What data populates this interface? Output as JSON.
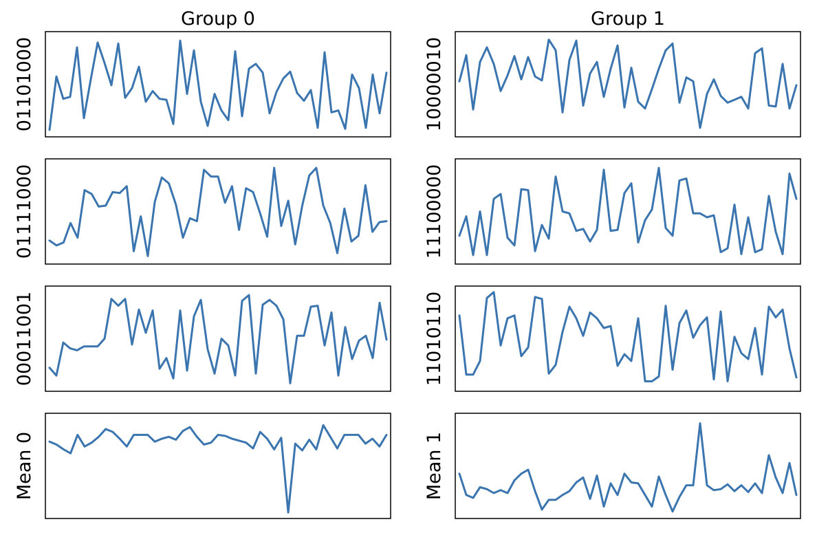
{
  "chart_data": {
    "type": "line",
    "line_color": "#3b75af",
    "grid": false,
    "x_ticks_shown": false,
    "y_ticks_shown": false,
    "columns": [
      "Group 0",
      "Group 1"
    ],
    "panels": [
      {
        "column": "Group 0",
        "row_label": "01101000",
        "ylim": [
          0,
          1
        ],
        "values": [
          0.03,
          0.58,
          0.35,
          0.37,
          0.88,
          0.15,
          0.55,
          0.93,
          0.72,
          0.49,
          0.92,
          0.36,
          0.46,
          0.68,
          0.32,
          0.43,
          0.35,
          0.34,
          0.09,
          0.95,
          0.4,
          0.85,
          0.32,
          0.07,
          0.4,
          0.23,
          0.13,
          0.84,
          0.17,
          0.66,
          0.71,
          0.62,
          0.2,
          0.42,
          0.56,
          0.63,
          0.41,
          0.33,
          0.44,
          0.05,
          0.83,
          0.21,
          0.23,
          0.04,
          0.6,
          0.46,
          0.05,
          0.6,
          0.2,
          0.62
        ]
      },
      {
        "column": "Group 1",
        "row_label": "10000010",
        "ylim": [
          0,
          1
        ],
        "values": [
          0.53,
          0.8,
          0.24,
          0.73,
          0.88,
          0.71,
          0.43,
          0.59,
          0.79,
          0.55,
          0.78,
          0.58,
          0.54,
          0.96,
          0.85,
          0.21,
          0.75,
          0.95,
          0.28,
          0.61,
          0.73,
          0.37,
          0.66,
          0.9,
          0.26,
          0.67,
          0.32,
          0.25,
          0.45,
          0.66,
          0.85,
          0.92,
          0.31,
          0.57,
          0.53,
          0.05,
          0.4,
          0.55,
          0.38,
          0.31,
          0.34,
          0.37,
          0.25,
          0.82,
          0.87,
          0.28,
          0.27,
          0.71,
          0.25,
          0.49
        ]
      },
      {
        "column": "Group 0",
        "row_label": "01111000",
        "ylim": [
          0,
          1
        ],
        "values": [
          0.2,
          0.15,
          0.18,
          0.38,
          0.23,
          0.72,
          0.68,
          0.55,
          0.56,
          0.7,
          0.69,
          0.76,
          0.09,
          0.45,
          0.04,
          0.6,
          0.85,
          0.79,
          0.57,
          0.23,
          0.43,
          0.4,
          0.93,
          0.86,
          0.86,
          0.59,
          0.76,
          0.31,
          0.74,
          0.7,
          0.48,
          0.24,
          0.95,
          0.35,
          0.61,
          0.16,
          0.56,
          0.87,
          0.95,
          0.56,
          0.38,
          0.07,
          0.53,
          0.19,
          0.25,
          0.77,
          0.29,
          0.39,
          0.4
        ]
      },
      {
        "column": "Group 1",
        "row_label": "11100000",
        "ylim": [
          0,
          1
        ],
        "values": [
          0.25,
          0.45,
          0.05,
          0.5,
          0.05,
          0.63,
          0.68,
          0.23,
          0.15,
          0.73,
          0.72,
          0.09,
          0.36,
          0.22,
          0.86,
          0.5,
          0.48,
          0.3,
          0.32,
          0.19,
          0.31,
          0.93,
          0.3,
          0.31,
          0.69,
          0.79,
          0.18,
          0.41,
          0.52,
          0.95,
          0.33,
          0.25,
          0.82,
          0.84,
          0.48,
          0.48,
          0.44,
          0.46,
          0.08,
          0.12,
          0.57,
          0.06,
          0.44,
          0.08,
          0.11,
          0.66,
          0.29,
          0.06,
          0.89,
          0.63
        ]
      },
      {
        "column": "Group 0",
        "row_label": "00011001",
        "ylim": [
          0,
          1
        ],
        "values": [
          0.2,
          0.12,
          0.46,
          0.4,
          0.38,
          0.42,
          0.42,
          0.42,
          0.5,
          0.91,
          0.84,
          0.91,
          0.44,
          0.8,
          0.56,
          0.79,
          0.19,
          0.3,
          0.09,
          0.79,
          0.17,
          0.73,
          0.9,
          0.39,
          0.14,
          0.5,
          0.43,
          0.12,
          0.89,
          0.95,
          0.14,
          0.85,
          0.9,
          0.84,
          0.7,
          0.04,
          0.53,
          0.53,
          0.83,
          0.84,
          0.43,
          0.77,
          0.12,
          0.62,
          0.29,
          0.48,
          0.53,
          0.3,
          0.87,
          0.49
        ]
      },
      {
        "column": "Group 1",
        "row_label": "11010110",
        "ylim": [
          0,
          1
        ],
        "values": [
          0.74,
          0.13,
          0.13,
          0.27,
          0.92,
          0.98,
          0.43,
          0.71,
          0.74,
          0.32,
          0.41,
          0.93,
          0.91,
          0.14,
          0.23,
          0.57,
          0.83,
          0.71,
          0.53,
          0.77,
          0.71,
          0.61,
          0.63,
          0.22,
          0.34,
          0.27,
          0.71,
          0.06,
          0.06,
          0.11,
          0.84,
          0.18,
          0.66,
          0.79,
          0.51,
          0.64,
          0.72,
          0.08,
          0.78,
          0.06,
          0.52,
          0.35,
          0.29,
          0.61,
          0.13,
          0.83,
          0.72,
          0.8,
          0.4,
          0.1
        ]
      },
      {
        "column": "Group 0",
        "row_label": "Mean 0",
        "ylim": [
          0,
          1
        ],
        "values": [
          0.75,
          0.72,
          0.67,
          0.63,
          0.82,
          0.7,
          0.74,
          0.8,
          0.88,
          0.85,
          0.78,
          0.7,
          0.82,
          0.82,
          0.82,
          0.75,
          0.78,
          0.8,
          0.77,
          0.86,
          0.9,
          0.8,
          0.72,
          0.74,
          0.82,
          0.81,
          0.78,
          0.76,
          0.74,
          0.68,
          0.85,
          0.78,
          0.67,
          0.79,
          0.02,
          0.73,
          0.66,
          0.77,
          0.67,
          0.92,
          0.8,
          0.68,
          0.82,
          0.82,
          0.82,
          0.73,
          0.78,
          0.7,
          0.82
        ]
      },
      {
        "column": "Group 1",
        "row_label": "Mean 1",
        "ylim": [
          0,
          1
        ],
        "values": [
          0.42,
          0.2,
          0.17,
          0.28,
          0.26,
          0.22,
          0.25,
          0.22,
          0.35,
          0.42,
          0.46,
          0.24,
          0.05,
          0.15,
          0.15,
          0.2,
          0.24,
          0.33,
          0.38,
          0.16,
          0.4,
          0.08,
          0.32,
          0.2,
          0.42,
          0.33,
          0.32,
          0.2,
          0.08,
          0.39,
          0.2,
          0.03,
          0.18,
          0.3,
          0.3,
          0.94,
          0.3,
          0.25,
          0.26,
          0.31,
          0.24,
          0.3,
          0.23,
          0.32,
          0.22,
          0.61,
          0.38,
          0.22,
          0.53,
          0.2
        ]
      }
    ]
  }
}
